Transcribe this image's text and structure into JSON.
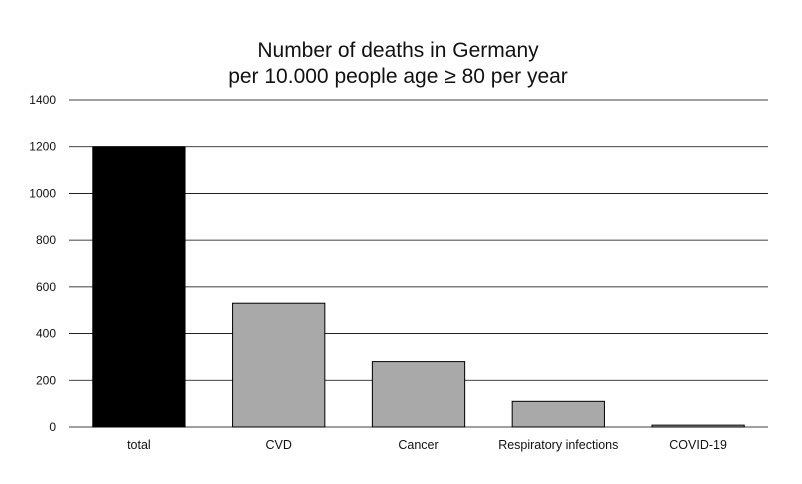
{
  "chart_data": {
    "type": "bar",
    "title_lines": [
      "Number of deaths in Germany",
      "per 10.000 people age ≥ 80 per year"
    ],
    "xlabel": "",
    "ylabel": "",
    "categories": [
      "total",
      "CVD",
      "Cancer",
      "Respiratory infections",
      "COVID-19"
    ],
    "values": [
      1200,
      530,
      280,
      110,
      8
    ],
    "bar_colors": [
      "#000000",
      "#a9a9a9",
      "#a9a9a9",
      "#a9a9a9",
      "#a9a9a9"
    ],
    "ylim": [
      0,
      1400
    ],
    "yticks": [
      0,
      200,
      400,
      600,
      800,
      1000,
      1200,
      1400
    ],
    "grid": true,
    "legend": false
  }
}
